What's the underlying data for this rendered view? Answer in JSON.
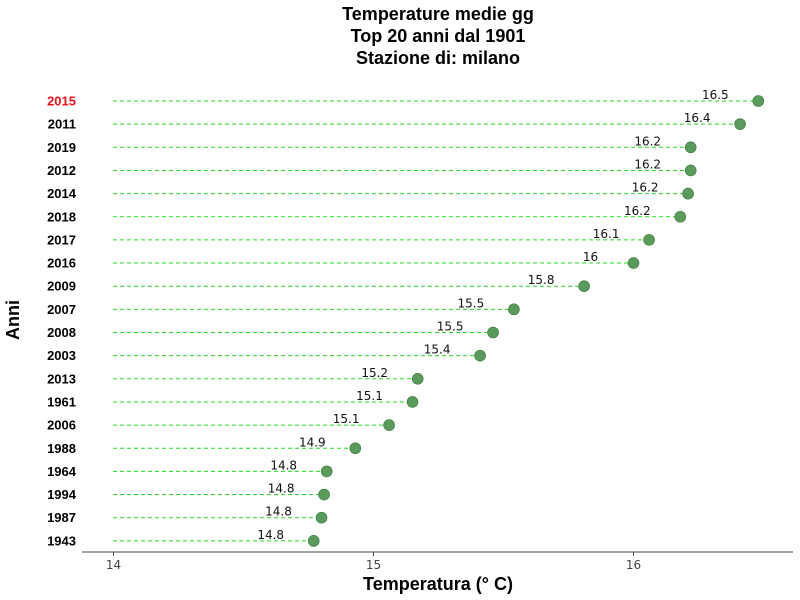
{
  "chart_data": {
    "type": "scatter",
    "title_lines": [
      "Temperature medie gg",
      "Top 20 anni dal 1901",
      "Stazione di: milano"
    ],
    "xlabel": "Temperatura (° C)",
    "ylabel": "Anni",
    "xlim": [
      13.95,
      16.63
    ],
    "xticks": [
      {
        "value": 14,
        "label": "14"
      },
      {
        "value": 15,
        "label": "15"
      },
      {
        "value": 16,
        "label": "16"
      }
    ],
    "grid": false,
    "highlight_category": "2015",
    "highlight_color": "#e8141c",
    "point_color": "#5a9a5a",
    "guide_color": "#22dd22",
    "points": [
      {
        "year": "2015",
        "value": 16.48,
        "label": "16.5"
      },
      {
        "year": "2011",
        "value": 16.41,
        "label": "16.4"
      },
      {
        "year": "2019",
        "value": 16.22,
        "label": "16.2"
      },
      {
        "year": "2012",
        "value": 16.22,
        "label": "16.2"
      },
      {
        "year": "2014",
        "value": 16.21,
        "label": "16.2"
      },
      {
        "year": "2018",
        "value": 16.18,
        "label": "16.2"
      },
      {
        "year": "2017",
        "value": 16.06,
        "label": "16.1"
      },
      {
        "year": "2016",
        "value": 16.0,
        "label": "16"
      },
      {
        "year": "2009",
        "value": 15.81,
        "label": "15.8"
      },
      {
        "year": "2007",
        "value": 15.54,
        "label": "15.5"
      },
      {
        "year": "2008",
        "value": 15.46,
        "label": "15.5"
      },
      {
        "year": "2003",
        "value": 15.41,
        "label": "15.4"
      },
      {
        "year": "2013",
        "value": 15.17,
        "label": "15.2"
      },
      {
        "year": "1961",
        "value": 15.15,
        "label": "15.1"
      },
      {
        "year": "2006",
        "value": 15.06,
        "label": "15.1"
      },
      {
        "year": "1988",
        "value": 14.93,
        "label": "14.9"
      },
      {
        "year": "1964",
        "value": 14.82,
        "label": "14.8"
      },
      {
        "year": "1994",
        "value": 14.81,
        "label": "14.8"
      },
      {
        "year": "1987",
        "value": 14.8,
        "label": "14.8"
      },
      {
        "year": "1943",
        "value": 14.77,
        "label": "14.8"
      }
    ]
  }
}
